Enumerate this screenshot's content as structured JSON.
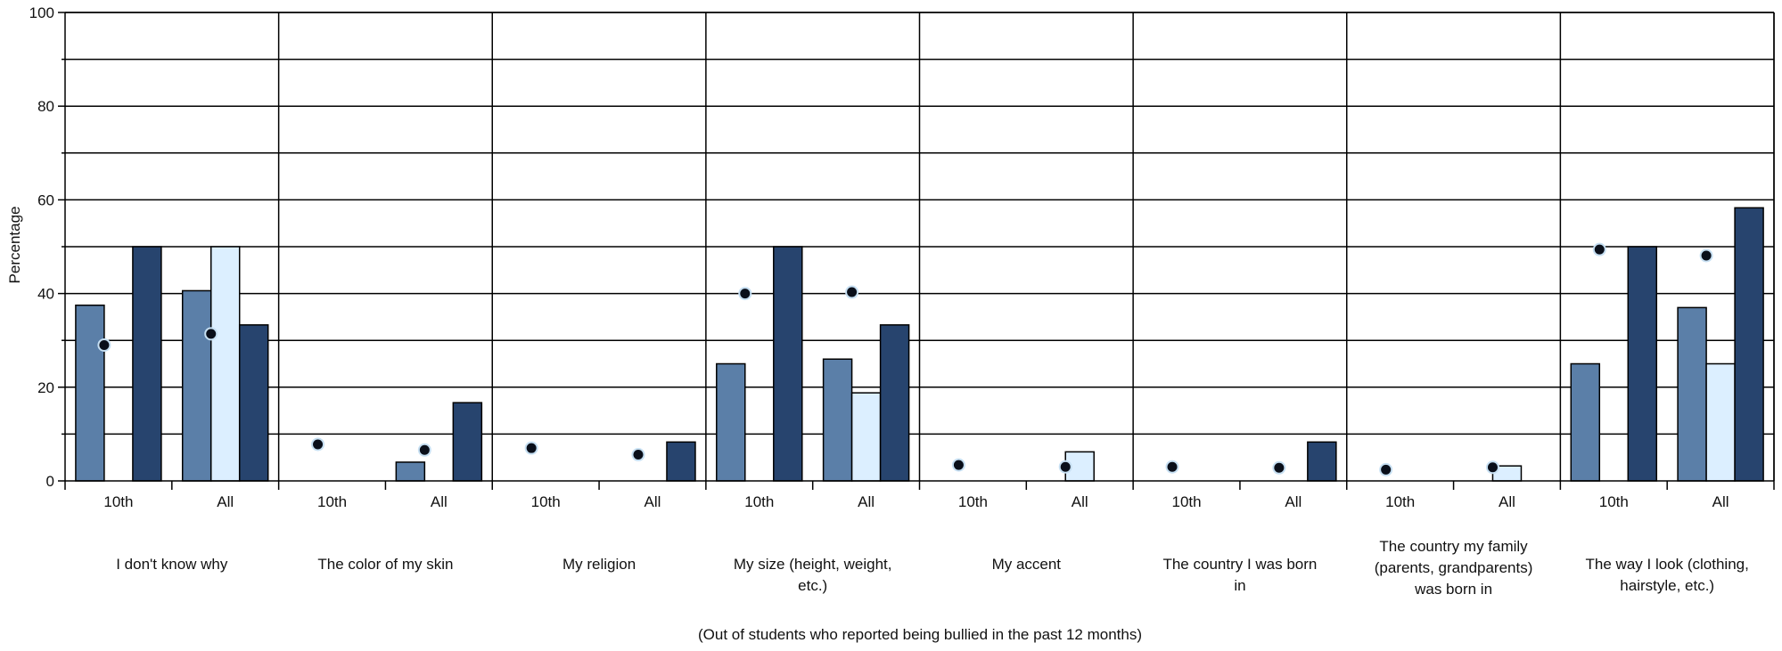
{
  "chart_data": {
    "type": "bar",
    "ylabel": "Percentage",
    "ylim": [
      0,
      100
    ],
    "yticks": [
      "0",
      "20",
      "40",
      "60",
      "80",
      "100"
    ],
    "grid": true,
    "footnote": "(Out of students who reported being bullied in the past 12 months)",
    "subcategories": [
      "10th",
      "All"
    ],
    "groups": [
      {
        "label": [
          "I don't know why"
        ]
      },
      {
        "label": [
          "The color of my skin"
        ]
      },
      {
        "label": [
          "My religion"
        ]
      },
      {
        "label": [
          "My size (height, weight,",
          "etc.)"
        ]
      },
      {
        "label": [
          "My accent"
        ]
      },
      {
        "label": [
          "The country I was born",
          "in"
        ]
      },
      {
        "label": [
          "The country my family",
          "(parents, grandparents)",
          "was born in"
        ]
      },
      {
        "label": [
          "The way I look (clothing,",
          "hairstyle, etc.)"
        ]
      }
    ],
    "series": [
      {
        "color": "#5b7fa8",
        "values": [
          [
            37.5,
            40.6
          ],
          [
            0,
            4.0
          ],
          [
            0,
            0
          ],
          [
            25.0,
            26.0
          ],
          [
            0,
            0
          ],
          [
            0,
            0
          ],
          [
            0,
            0
          ],
          [
            25.0,
            37.0
          ]
        ]
      },
      {
        "color": "#dcefff",
        "values": [
          [
            0,
            50.0
          ],
          [
            0,
            0
          ],
          [
            0,
            0
          ],
          [
            0,
            18.8
          ],
          [
            0,
            6.2
          ],
          [
            0,
            0
          ],
          [
            0,
            3.2
          ],
          [
            0,
            25.0
          ]
        ]
      },
      {
        "color": "#27446e",
        "values": [
          [
            50.0,
            33.3
          ],
          [
            0,
            16.7
          ],
          [
            0,
            8.3
          ],
          [
            50.0,
            33.3
          ],
          [
            0,
            0
          ],
          [
            0,
            8.3
          ],
          [
            0,
            0
          ],
          [
            50.0,
            58.3
          ]
        ]
      }
    ],
    "markers": [
      [
        29.0,
        31.4
      ],
      [
        7.8,
        6.6
      ],
      [
        7.0,
        5.6
      ],
      [
        40.0,
        40.3
      ],
      [
        3.4,
        3.0
      ],
      [
        3.0,
        2.8
      ],
      [
        2.4,
        2.9
      ],
      [
        49.4,
        48.1
      ]
    ]
  }
}
